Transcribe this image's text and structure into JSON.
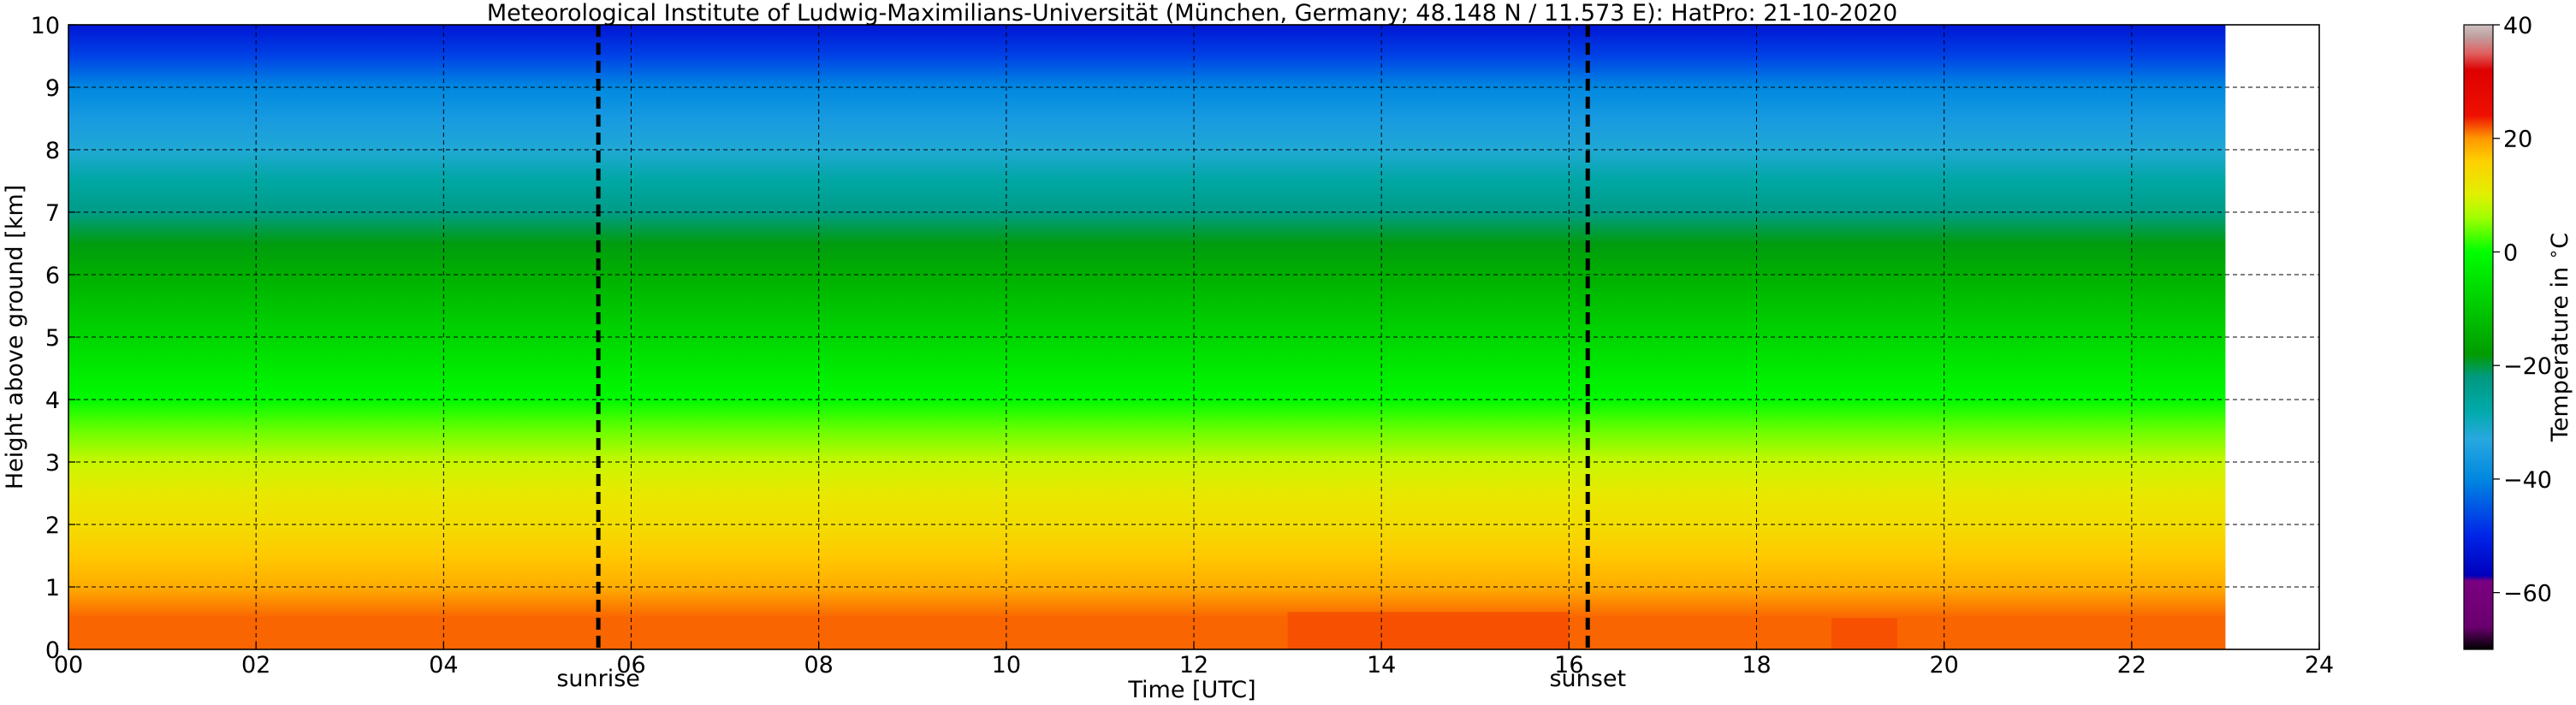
{
  "chart_data": {
    "type": "heatmap",
    "title": "Meteorological Institute of Ludwig-Maximilians-Universität (München, Germany; 48.148 N / 11.573 E):    HatPro: 21-10-2020",
    "xlabel": "Time [UTC]",
    "ylabel": "Height above ground [km]",
    "xlim": [
      0,
      24
    ],
    "ylim": [
      0,
      10
    ],
    "x_ticks": [
      "00",
      "02",
      "04",
      "06",
      "08",
      "10",
      "12",
      "14",
      "16",
      "18",
      "20",
      "22",
      "24"
    ],
    "y_ticks": [
      "0",
      "1",
      "2",
      "3",
      "4",
      "5",
      "6",
      "7",
      "8",
      "9",
      "10"
    ],
    "data_time_range": [
      0,
      23.0
    ],
    "grid": true,
    "annotations": [
      {
        "label": "sunrise",
        "x": 5.65
      },
      {
        "label": "sunset",
        "x": 16.2
      }
    ],
    "colorbar": {
      "label": "Temperature in $^\\circ$C",
      "range": [
        -70,
        40
      ],
      "ticks": [
        "−60",
        "−40",
        "−20",
        "0",
        "20",
        "40"
      ],
      "stops": [
        {
          "value": -70,
          "color": "#000000"
        },
        {
          "value": -66,
          "color": "#6a006f"
        },
        {
          "value": -58,
          "color": "#7a0080"
        },
        {
          "value": -57,
          "color": "#0000bb"
        },
        {
          "value": -50,
          "color": "#0024e8"
        },
        {
          "value": -40,
          "color": "#0088e0"
        },
        {
          "value": -33,
          "color": "#28a8e0"
        },
        {
          "value": -28,
          "color": "#00aaaa"
        },
        {
          "value": -22,
          "color": "#009980"
        },
        {
          "value": -18,
          "color": "#009c00"
        },
        {
          "value": -10,
          "color": "#00c800"
        },
        {
          "value": 0,
          "color": "#00ff00"
        },
        {
          "value": 6,
          "color": "#a0ff00"
        },
        {
          "value": 10,
          "color": "#e0f000"
        },
        {
          "value": 16,
          "color": "#ffd000"
        },
        {
          "value": 20,
          "color": "#ff9800"
        },
        {
          "value": 24,
          "color": "#ee1000"
        },
        {
          "value": 32,
          "color": "#dd0000"
        },
        {
          "value": 35,
          "color": "#e06060"
        },
        {
          "value": 38,
          "color": "#c0a0a0"
        },
        {
          "value": 40,
          "color": "#d0c0c0"
        }
      ]
    },
    "temperature_profile": [
      {
        "height_km": 0.0,
        "temp_c": 21.5
      },
      {
        "height_km": 0.5,
        "temp_c": 21.5
      },
      {
        "height_km": 1.0,
        "temp_c": 18.5
      },
      {
        "height_km": 1.5,
        "temp_c": 16.5
      },
      {
        "height_km": 2.0,
        "temp_c": 13.5
      },
      {
        "height_km": 2.5,
        "temp_c": 11.5
      },
      {
        "height_km": 3.0,
        "temp_c": 8.5
      },
      {
        "height_km": 3.5,
        "temp_c": 4.0
      },
      {
        "height_km": 4.0,
        "temp_c": -1.0
      },
      {
        "height_km": 4.5,
        "temp_c": -4.0
      },
      {
        "height_km": 5.0,
        "temp_c": -7.5
      },
      {
        "height_km": 5.5,
        "temp_c": -11.0
      },
      {
        "height_km": 6.0,
        "temp_c": -14.5
      },
      {
        "height_km": 6.5,
        "temp_c": -18.5
      },
      {
        "height_km": 7.0,
        "temp_c": -23.0
      },
      {
        "height_km": 7.5,
        "temp_c": -27.0
      },
      {
        "height_km": 8.0,
        "temp_c": -32.0
      },
      {
        "height_km": 8.5,
        "temp_c": -36.0
      },
      {
        "height_km": 9.0,
        "temp_c": -40.0
      },
      {
        "height_km": 9.5,
        "temp_c": -47.0
      },
      {
        "height_km": 10.0,
        "temp_c": -53.0
      }
    ],
    "warm_patches": [
      {
        "t_start": 13.0,
        "t_end": 16.0,
        "height_max_km": 0.6,
        "temp_c": 22.5
      },
      {
        "t_start": 18.8,
        "t_end": 19.5,
        "height_max_km": 0.5,
        "temp_c": 22.5
      }
    ]
  }
}
